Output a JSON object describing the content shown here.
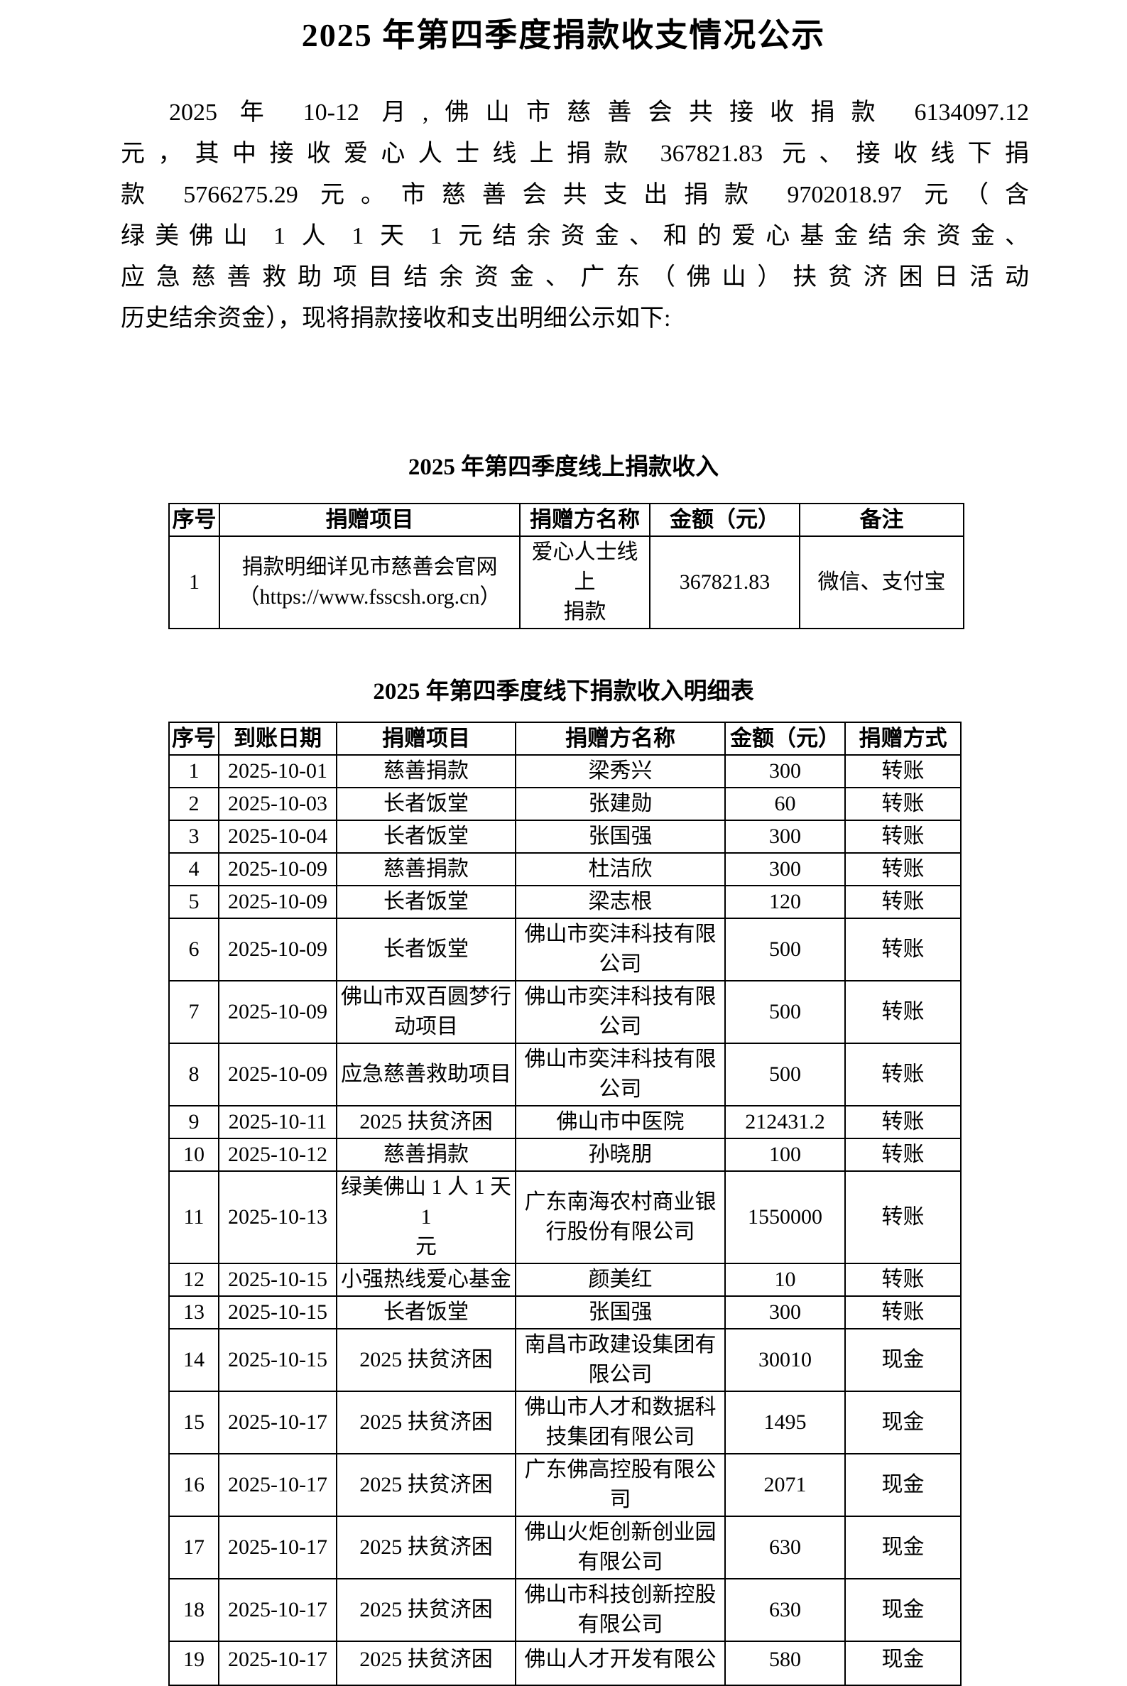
{
  "page": {
    "title": "2025 年第四季度捐款收支情况公示"
  },
  "intro": {
    "lines": [
      "2025 年 10-12 月,佛山市慈善会共接收捐款 6134097.12",
      "元，其中接收爱心人士线上捐款 367821.83 元、接收线下捐",
      "款 5766275.29 元。市慈善会共支出捐款 9702018.97 元（含",
      "绿美佛山 1 人 1 天 1 元结余资金、和的爱心基金结余资金、",
      "应急慈善救助项目结余资金、广东（佛山）扶贫济困日活动",
      "历史结余资金），现将捐款接收和支出明细公示如下:"
    ]
  },
  "table1": {
    "title": "2025 年第四季度线上捐款收入",
    "headers": [
      "序号",
      "捐赠项目",
      "捐赠方名称",
      "金额（元）",
      "备注"
    ],
    "rows": [
      [
        "1",
        "捐款明细详见市慈善会官网\n（https://www.fsscsh.org.cn）",
        "爱心人士线上\n捐款",
        "367821.83",
        "微信、支付宝"
      ]
    ]
  },
  "table2": {
    "title": "2025 年第四季度线下捐款收入明细表",
    "headers": [
      "序号",
      "到账日期",
      "捐赠项目",
      "捐赠方名称",
      "金额（元）",
      "捐赠方式"
    ],
    "rows": [
      [
        "1",
        "2025-10-01",
        "慈善捐款",
        "梁秀兴",
        "300",
        "转账"
      ],
      [
        "2",
        "2025-10-03",
        "长者饭堂",
        "张建勋",
        "60",
        "转账"
      ],
      [
        "3",
        "2025-10-04",
        "长者饭堂",
        "张国强",
        "300",
        "转账"
      ],
      [
        "4",
        "2025-10-09",
        "慈善捐款",
        "杜洁欣",
        "300",
        "转账"
      ],
      [
        "5",
        "2025-10-09",
        "长者饭堂",
        "梁志根",
        "120",
        "转账"
      ],
      [
        "6",
        "2025-10-09",
        "长者饭堂",
        "佛山市奕沣科技有限\n公司",
        "500",
        "转账"
      ],
      [
        "7",
        "2025-10-09",
        "佛山市双百圆梦行\n动项目",
        "佛山市奕沣科技有限\n公司",
        "500",
        "转账"
      ],
      [
        "8",
        "2025-10-09",
        "应急慈善救助项目",
        "佛山市奕沣科技有限\n公司",
        "500",
        "转账"
      ],
      [
        "9",
        "2025-10-11",
        "2025 扶贫济困",
        "佛山市中医院",
        "212431.2",
        "转账"
      ],
      [
        "10",
        "2025-10-12",
        "慈善捐款",
        "孙晓朋",
        "100",
        "转账"
      ],
      [
        "11",
        "2025-10-13",
        "绿美佛山 1 人 1 天 1\n元",
        "广东南海农村商业银\n行股份有限公司",
        "1550000",
        "转账"
      ],
      [
        "12",
        "2025-10-15",
        "小强热线爱心基金",
        "颜美红",
        "10",
        "转账"
      ],
      [
        "13",
        "2025-10-15",
        "长者饭堂",
        "张国强",
        "300",
        "转账"
      ],
      [
        "14",
        "2025-10-15",
        "2025 扶贫济困",
        "南昌市政建设集团有\n限公司",
        "30010",
        "现金"
      ],
      [
        "15",
        "2025-10-17",
        "2025 扶贫济困",
        "佛山市人才和数据科\n技集团有限公司",
        "1495",
        "现金"
      ],
      [
        "16",
        "2025-10-17",
        "2025 扶贫济困",
        "广东佛高控股有限公\n司",
        "2071",
        "现金"
      ],
      [
        "17",
        "2025-10-17",
        "2025 扶贫济困",
        "佛山火炬创新创业园\n有限公司",
        "630",
        "现金"
      ],
      [
        "18",
        "2025-10-17",
        "2025 扶贫济困",
        "佛山市科技创新控股\n有限公司",
        "630",
        "现金"
      ],
      [
        "19",
        "2025-10-17",
        "2025 扶贫济困",
        "佛山人才开发有限公",
        "580",
        "现金"
      ]
    ]
  }
}
